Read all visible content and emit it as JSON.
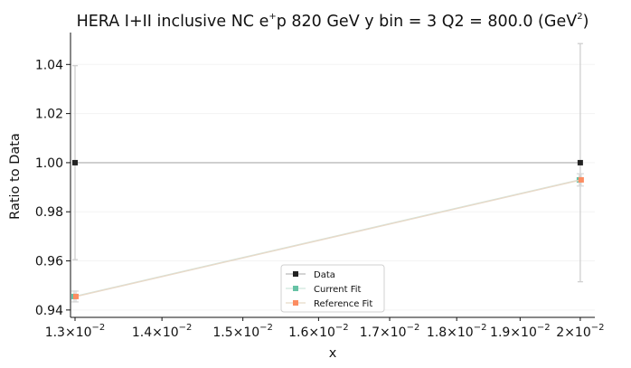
{
  "chart_data": {
    "type": "scatter",
    "title": "HERA I+II inclusive NC e$^+$p 820 GeV y bin = 3 Q2 = 800.0 (GeV$^2$)",
    "title_parts": {
      "prefix": "HERA I+II inclusive NC e",
      "sup1": "+",
      "mid": "p 820 GeV y bin = 3 Q2 = 800.0 (GeV",
      "sup2": "2",
      "suffix": ")"
    },
    "xlabel": "x",
    "ylabel": "Ratio to Data",
    "xscale": "log",
    "xlim": [
      0.01295,
      0.02025
    ],
    "ylim": [
      0.937,
      1.053
    ],
    "yticks": [
      0.94,
      0.96,
      0.98,
      1.0,
      1.02,
      1.04
    ],
    "ytick_labels": [
      "0.94",
      "0.96",
      "0.98",
      "1.00",
      "1.02",
      "1.04"
    ],
    "xticks": [
      0.013,
      0.014,
      0.015,
      0.016,
      0.017,
      0.018,
      0.019,
      0.02
    ],
    "xtick_labels": [
      {
        "mant": "1.3",
        "base": "10",
        "exp": "−2"
      },
      {
        "mant": "1.4",
        "base": "10",
        "exp": "−2"
      },
      {
        "mant": "1.5",
        "base": "10",
        "exp": "−2"
      },
      {
        "mant": "1.6",
        "base": "10",
        "exp": "−2"
      },
      {
        "mant": "1.7",
        "base": "10",
        "exp": "−2"
      },
      {
        "mant": "1.8",
        "base": "10",
        "exp": "−2"
      },
      {
        "mant": "1.9",
        "base": "10",
        "exp": "−2"
      },
      {
        "mant": "2",
        "base": "10",
        "exp": "−2"
      }
    ],
    "grid": "horizontal-faint",
    "legend_position": "lower-center",
    "series": [
      {
        "name": "Data",
        "color": "#222222",
        "line_color": "#bbbbbb",
        "marker": "square",
        "x_offset": 0,
        "points": [
          {
            "x": 0.013,
            "y": 1.0,
            "err": 0.0395
          },
          {
            "x": 0.02,
            "y": 1.0,
            "err": 0.0485
          }
        ]
      },
      {
        "name": "Current Fit",
        "color": "#66c2a5",
        "line_color": "#cfe6dd",
        "marker": "square",
        "x_offset": -1,
        "points": [
          {
            "x": 0.013,
            "y": 0.9455,
            "err": 0.0022
          },
          {
            "x": 0.02,
            "y": 0.993,
            "err": 0.0025
          }
        ]
      },
      {
        "name": "Reference Fit",
        "color": "#fc8d62",
        "line_color": "#e8d9c8",
        "marker": "square",
        "x_offset": 1,
        "points": [
          {
            "x": 0.013,
            "y": 0.9455,
            "err": 0.0022
          },
          {
            "x": 0.02,
            "y": 0.993,
            "err": 0.0025
          }
        ]
      }
    ]
  }
}
